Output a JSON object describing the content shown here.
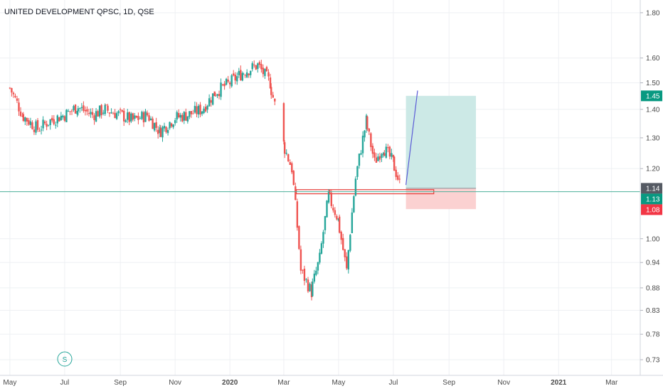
{
  "header": {
    "title": "UNITED DEVELOPMENT QPSC, 1D, QSE"
  },
  "colors": {
    "up": "#26a69a",
    "down": "#ef5350",
    "grid": "#eef0f3",
    "target_zone": "#cce9e6",
    "stop_zone": "#fbd1d1",
    "price_line": "#4caf9a",
    "trend_line": "#5b5bd6"
  },
  "chart_data": {
    "type": "candlestick",
    "title": "UNITED DEVELOPMENT QPSC, 1D, QSE",
    "y_scale": "log",
    "ylim": [
      0.71,
      1.84
    ],
    "grid": true,
    "y_ticks": [
      "1.80",
      "1.60",
      "1.50",
      "1.40",
      "1.30",
      "1.20",
      "1.00",
      "0.94",
      "0.88",
      "0.83",
      "0.78",
      "0.73"
    ],
    "x_ticks": [
      "May",
      "Jul",
      "Sep",
      "Nov",
      "2020",
      "Mar",
      "May",
      "Jul",
      "Sep",
      "Nov",
      "2021",
      "Mar"
    ],
    "price_tags": [
      {
        "label": "1.45",
        "value": 1.45,
        "color": "#089981"
      },
      {
        "label": "1.14",
        "value": 1.14,
        "color": "#555a63"
      },
      {
        "label": "1.13",
        "value": 1.13,
        "color": "#089981"
      },
      {
        "label": "1.08",
        "value": 1.08,
        "color": "#f23645"
      }
    ],
    "series": [
      {
        "date": "2019-05-01",
        "close": 1.48
      },
      {
        "date": "2019-05-15",
        "close": 1.38
      },
      {
        "date": "2019-06-01",
        "close": 1.33
      },
      {
        "date": "2019-06-15",
        "close": 1.36
      },
      {
        "date": "2019-07-01",
        "close": 1.38
      },
      {
        "date": "2019-07-15",
        "close": 1.41
      },
      {
        "date": "2019-08-01",
        "close": 1.38
      },
      {
        "date": "2019-08-15",
        "close": 1.4
      },
      {
        "date": "2019-09-01",
        "close": 1.38
      },
      {
        "date": "2019-09-15",
        "close": 1.36
      },
      {
        "date": "2019-10-01",
        "close": 1.38
      },
      {
        "date": "2019-10-15",
        "close": 1.32
      },
      {
        "date": "2019-11-01",
        "close": 1.37
      },
      {
        "date": "2019-11-15",
        "close": 1.38
      },
      {
        "date": "2019-12-01",
        "close": 1.4
      },
      {
        "date": "2019-12-15",
        "close": 1.46
      },
      {
        "date": "2020-01-01",
        "close": 1.5
      },
      {
        "date": "2020-01-15",
        "close": 1.54
      },
      {
        "date": "2020-02-01",
        "close": 1.57
      },
      {
        "date": "2020-02-15",
        "close": 1.5
      },
      {
        "date": "2020-03-01",
        "close": 1.28
      },
      {
        "date": "2020-03-10",
        "close": 1.2
      },
      {
        "date": "2020-03-20",
        "close": 0.92
      },
      {
        "date": "2020-04-01",
        "close": 0.87
      },
      {
        "date": "2020-04-10",
        "close": 0.95
      },
      {
        "date": "2020-04-20",
        "close": 1.12
      },
      {
        "date": "2020-05-01",
        "close": 1.05
      },
      {
        "date": "2020-05-10",
        "close": 0.92
      },
      {
        "date": "2020-05-20",
        "close": 1.17
      },
      {
        "date": "2020-06-01",
        "close": 1.36
      },
      {
        "date": "2020-06-10",
        "close": 1.22
      },
      {
        "date": "2020-06-20",
        "close": 1.27
      },
      {
        "date": "2020-07-01",
        "close": 1.22
      },
      {
        "date": "2020-07-10",
        "close": 1.14
      }
    ],
    "support_zone": {
      "from_date": "2020-03-15",
      "to_date": "2020-08-15",
      "low": 1.124,
      "high": 1.136
    },
    "position": {
      "from_date": "2020-07-15",
      "to_date": "2020-10-01",
      "entry": 1.14,
      "target": 1.45,
      "stop": 1.08
    },
    "trend_line": [
      {
        "date": "2020-07-15",
        "value": 1.15
      },
      {
        "date": "2020-07-28",
        "value": 1.47
      }
    ]
  },
  "footer": {
    "symbol_badge": "S"
  }
}
